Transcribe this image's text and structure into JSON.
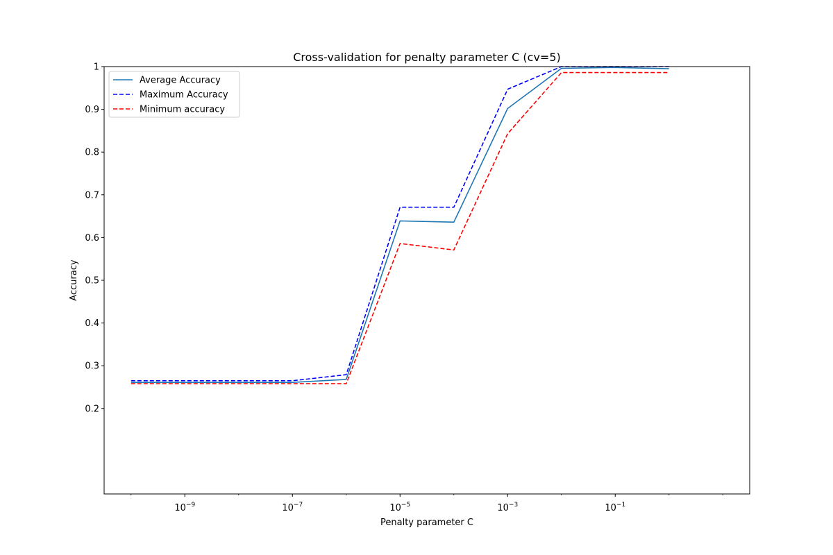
{
  "chart_data": {
    "type": "line",
    "title": "Cross-validation for penalty parameter C (cv=5)",
    "xlabel": "Penalty parameter C",
    "ylabel": "Accuracy",
    "xscale": "log",
    "xlim": [
      3.16e-11,
      31.6
    ],
    "ylim": [
      0.0,
      1.0
    ],
    "x": [
      1e-10,
      1e-09,
      1e-08,
      1e-07,
      1e-06,
      1e-05,
      0.0001,
      0.001,
      0.01,
      0.1,
      1
    ],
    "x_ticks": [
      {
        "value": 1e-09,
        "base": "10",
        "exp": "−9"
      },
      {
        "value": 1e-07,
        "base": "10",
        "exp": "−7"
      },
      {
        "value": 1e-05,
        "base": "10",
        "exp": "−5"
      },
      {
        "value": 0.001,
        "base": "10",
        "exp": "−3"
      },
      {
        "value": 0.1,
        "base": "10",
        "exp": "−1"
      }
    ],
    "y_ticks": [
      {
        "value": 0.2,
        "label": "0.2"
      },
      {
        "value": 0.3,
        "label": "0.3"
      },
      {
        "value": 0.4,
        "label": "0.4"
      },
      {
        "value": 0.5,
        "label": "0.5"
      },
      {
        "value": 0.6,
        "label": "0.6"
      },
      {
        "value": 0.7,
        "label": "0.7"
      },
      {
        "value": 0.8,
        "label": "0.8"
      },
      {
        "value": 0.9,
        "label": "0.9"
      },
      {
        "value": 1.0,
        "label": "1"
      }
    ],
    "grid": false,
    "legend": "upper left",
    "series": [
      {
        "name": "Average Accuracy",
        "color": "#1f77b4",
        "dash": "solid",
        "values": [
          0.261,
          0.261,
          0.261,
          0.261,
          0.268,
          0.639,
          0.636,
          0.902,
          0.996,
          0.998,
          0.995
        ]
      },
      {
        "name": "Maximum Accuracy",
        "color": "#0000ff",
        "dash": "dashed",
        "values": [
          0.265,
          0.265,
          0.265,
          0.265,
          0.279,
          0.671,
          0.671,
          0.947,
          1.0,
          1.0,
          1.0
        ]
      },
      {
        "name": "Minimum accuracy",
        "color": "#ff0000",
        "dash": "dashed",
        "values": [
          0.258,
          0.258,
          0.258,
          0.258,
          0.258,
          0.586,
          0.571,
          0.843,
          0.986,
          0.986,
          0.986
        ]
      }
    ]
  }
}
